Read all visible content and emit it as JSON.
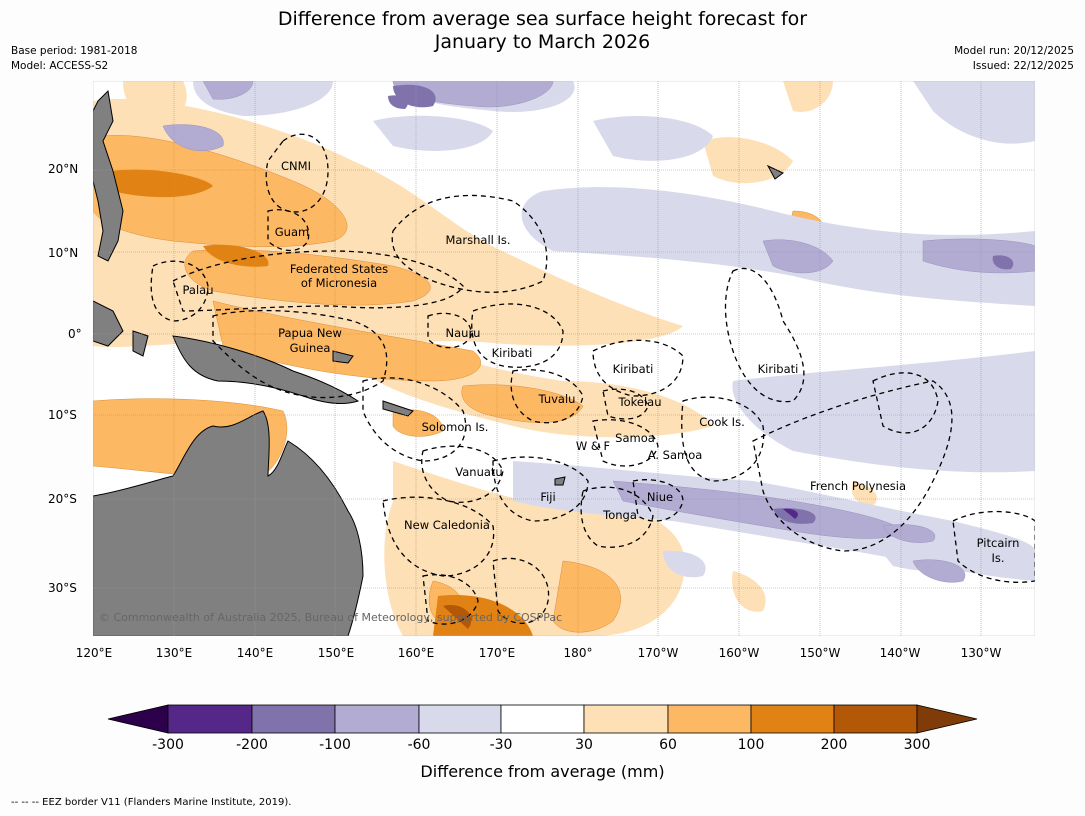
{
  "title_line1": "Difference from average sea surface height forecast for",
  "title_line2": "January to March 2026",
  "base_period": "Base period: 1981-2018",
  "model": "Model: ACCESS-S2",
  "model_run": "Model run: 20/12/2025",
  "issued": "Issued: 22/12/2025",
  "copyright": "© Commonwealth of Australia 2025, Bureau of Meteorology, supported by COSPPac",
  "lon_labels": [
    "120°E",
    "130°E",
    "140°E",
    "150°E",
    "160°E",
    "170°E",
    "180°",
    "170°W",
    "160°W",
    "150°W",
    "140°W",
    "130°W"
  ],
  "lat_labels": [
    "20°N",
    "10°N",
    "0°",
    "10°S",
    "20°S",
    "30°S"
  ],
  "region_labels": {
    "cnmi": "CNMI",
    "guam": "Guam",
    "marshall": "Marshall Is.",
    "fsm1": "Federated States",
    "fsm2": "of Micronesia",
    "palau": "Palau",
    "png1": "Papua New",
    "png2": "Guinea",
    "nauru": "Nauru",
    "kiribati_w": "Kiribati",
    "kiribati_c": "Kiribati",
    "kiribati_e": "Kiribati",
    "tuvalu": "Tuvalu",
    "tokelau": "Tokelau",
    "solomon": "Solomon Is.",
    "cook": "Cook Is.",
    "samoa": "Samoa",
    "wf": "W & F",
    "asamoa": "A. Samoa",
    "vanuatu": "Vanuatu",
    "fiji": "Fiji",
    "niue": "Niue",
    "tonga": "Tonga",
    "french_poly": "French Polynesia",
    "new_cal": "New Caledonia",
    "pitcairn1": "Pitcairn",
    "pitcairn2": "Is."
  },
  "colorbar": {
    "ticks": [
      "-300",
      "-200",
      "-100",
      "-60",
      "-30",
      "30",
      "60",
      "100",
      "200",
      "300"
    ],
    "colors": [
      "#2d004b",
      "#542788",
      "#8073ac",
      "#b2abd2",
      "#d8daeb",
      "#ffffff",
      "#fee0b6",
      "#fdb863",
      "#e08214",
      "#b35806",
      "#7f3b08"
    ],
    "label": "Difference from average (mm)"
  },
  "footer": "--  --  -- EEZ border V11 (Flanders Marine Institute, 2019)."
}
